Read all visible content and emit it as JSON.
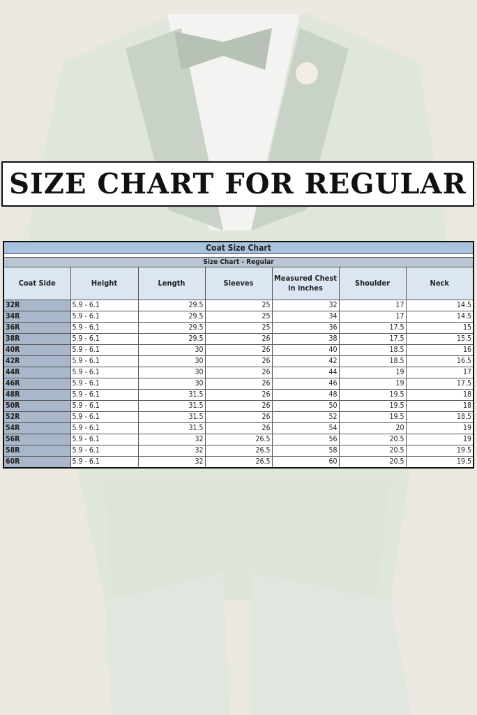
{
  "banner": {
    "title": "SIZE CHART FOR REGULAR"
  },
  "table": {
    "title": "Coat Size Chart",
    "subtitle": "Size Chart - Regular",
    "headers": [
      "Coat Side",
      "Height",
      "Length",
      "Sleeves",
      "Measured Chest in inches",
      "Shoulder",
      "Neck"
    ],
    "rows": [
      [
        "32R",
        "5.9 - 6.1",
        "29.5",
        "25",
        "32",
        "17",
        "14.5"
      ],
      [
        "34R",
        "5.9 - 6.1",
        "29.5",
        "25",
        "34",
        "17",
        "14.5"
      ],
      [
        "36R",
        "5.9 - 6.1",
        "29.5",
        "25",
        "36",
        "17.5",
        "15"
      ],
      [
        "38R",
        "5.9 - 6.1",
        "29.5",
        "26",
        "38",
        "17.5",
        "15.5"
      ],
      [
        "40R",
        "5.9 - 6.1",
        "30",
        "26",
        "40",
        "18.5",
        "16"
      ],
      [
        "42R",
        "5.9 - 6.1",
        "30",
        "26",
        "42",
        "18.5",
        "16.5"
      ],
      [
        "44R",
        "5.9 - 6.1",
        "30",
        "26",
        "44",
        "19",
        "17"
      ],
      [
        "46R",
        "5.9 - 6.1",
        "30",
        "26",
        "46",
        "19",
        "17.5"
      ],
      [
        "48R",
        "5.9 - 6.1",
        "31.5",
        "26",
        "48",
        "19.5",
        "18"
      ],
      [
        "50R",
        "5.9 - 6.1",
        "31.5",
        "26",
        "50",
        "19.5",
        "18"
      ],
      [
        "52R",
        "5.9 - 6.1",
        "31.5",
        "26",
        "52",
        "19.5",
        "18.5"
      ],
      [
        "54R",
        "5.9 - 6.1",
        "31.5",
        "26",
        "54",
        "20",
        "19"
      ],
      [
        "56R",
        "5.9 - 6.1",
        "32",
        "26.5",
        "56",
        "20.5",
        "19"
      ],
      [
        "58R",
        "5.9 - 6.1",
        "32",
        "26.5",
        "58",
        "20.5",
        "19.5"
      ],
      [
        "60R",
        "5.9 - 6.1",
        "32",
        "26.5",
        "60",
        "20.5",
        "19.5"
      ]
    ]
  },
  "colors": {
    "suit": "#dfe6dc",
    "background": "#ece9e3",
    "header_blue": "#a9c2dd",
    "column_gray": "#a8b7c9"
  }
}
